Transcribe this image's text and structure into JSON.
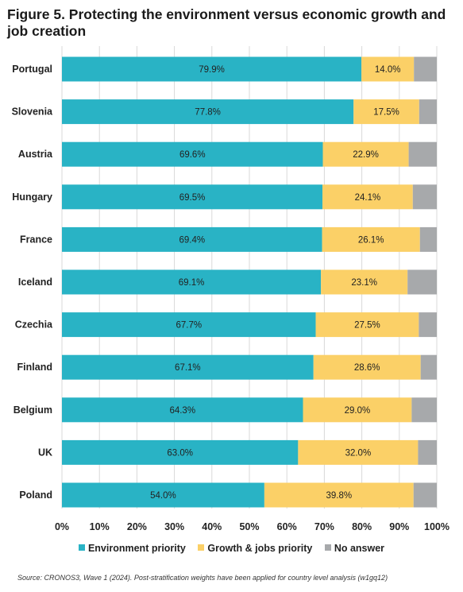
{
  "title": "Figure 5. Protecting the environment versus economic growth and job creation",
  "source": "Source: CRONOS3, Wave 1 (2024). Post-stratification weights have been applied for country level analysis (w1gq12)",
  "colors": {
    "environment": "#29b3c5",
    "growth": "#fbd067",
    "none": "#a7a9ab",
    "grid": "#d9d9d9"
  },
  "chart_data": {
    "type": "bar",
    "orientation": "horizontal",
    "stacked": true,
    "categories": [
      "Portugal",
      "Slovenia",
      "Austria",
      "Hungary",
      "France",
      "Iceland",
      "Czechia",
      "Finland",
      "Belgium",
      "UK",
      "Poland"
    ],
    "series": [
      {
        "name": "Environment priority",
        "values": [
          79.9,
          77.8,
          69.6,
          69.5,
          69.4,
          69.1,
          67.7,
          67.1,
          64.3,
          63.0,
          54.0
        ],
        "labels": [
          "79.9%",
          "77.8%",
          "69.6%",
          "69.5%",
          "69.4%",
          "69.1%",
          "67.7%",
          "67.1%",
          "64.3%",
          "63.0%",
          "54.0%"
        ]
      },
      {
        "name": "Growth & jobs priority",
        "values": [
          14.0,
          17.5,
          22.9,
          24.1,
          26.1,
          23.1,
          27.5,
          28.6,
          29.0,
          32.0,
          39.8
        ],
        "labels": [
          "14.0%",
          "17.5%",
          "22.9%",
          "24.1%",
          "26.1%",
          "23.1%",
          "27.5%",
          "28.6%",
          "29.0%",
          "32.0%",
          "39.8%"
        ]
      },
      {
        "name": "No answer",
        "values": [
          6.1,
          4.7,
          7.5,
          6.4,
          4.5,
          7.8,
          4.8,
          4.3,
          6.7,
          5.0,
          6.2
        ]
      }
    ],
    "xlim": [
      0,
      100
    ],
    "ticks": [
      "0%",
      "10%",
      "20%",
      "30%",
      "40%",
      "50%",
      "60%",
      "70%",
      "80%",
      "90%",
      "100%"
    ],
    "grid": true,
    "legend": "bottom"
  }
}
